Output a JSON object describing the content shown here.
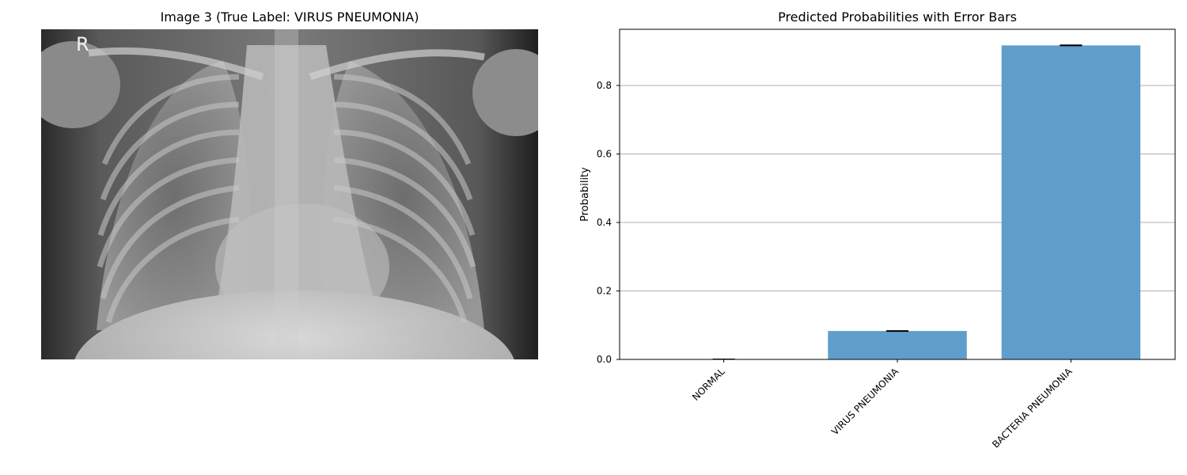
{
  "left_panel": {
    "title": "Image 3 (True Label: VIRUS PNEUMONIA)",
    "marker_letter": "R"
  },
  "chart_data": {
    "type": "bar",
    "title": "Predicted Probabilities with Error Bars",
    "xlabel": "",
    "ylabel": "Probability",
    "categories": [
      "NORMAL",
      "VIRUS PNEUMONIA",
      "BACTERIA PNEUMONIA"
    ],
    "values": [
      0.001,
      0.083,
      0.917
    ],
    "errors": [
      0.0,
      0.001,
      0.001
    ],
    "ylim": [
      0,
      0.964
    ],
    "yticks": [
      0.0,
      0.2,
      0.4,
      0.6,
      0.8
    ],
    "ytick_labels": [
      "0.0",
      "0.2",
      "0.4",
      "0.6",
      "0.8"
    ],
    "grid": "y",
    "bar_color": "#5f9ecb"
  }
}
